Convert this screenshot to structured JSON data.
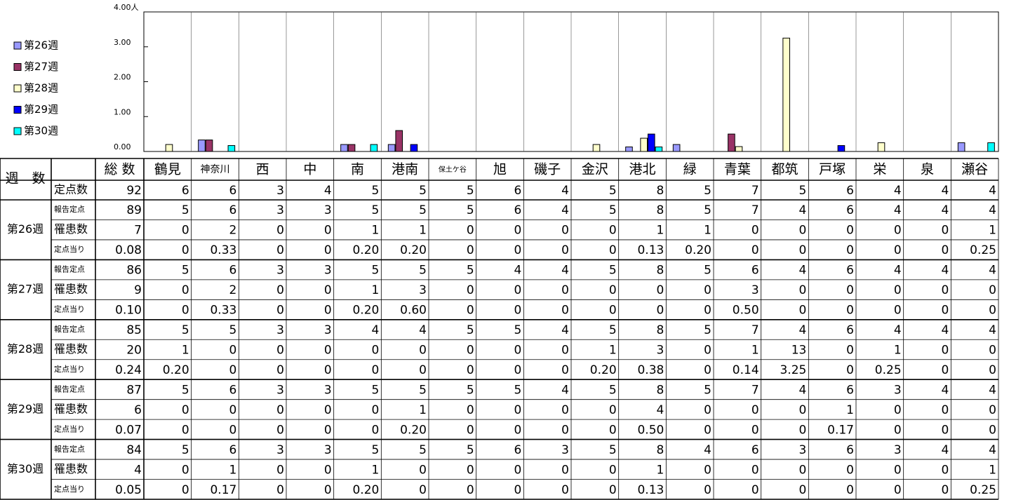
{
  "chart_data": {
    "type": "bar",
    "categories": [
      "鶴見",
      "神奈川",
      "西",
      "中",
      "南",
      "港南",
      "保土ケ谷",
      "旭",
      "磯子",
      "金沢",
      "港北",
      "緑",
      "青葉",
      "都筑",
      "戸塚",
      "栄",
      "泉",
      "瀬谷"
    ],
    "series": [
      {
        "name": "第26週",
        "color": "#9999ff",
        "values": [
          0,
          0.33,
          0,
          0,
          0.2,
          0.2,
          0,
          0,
          0,
          0,
          0.13,
          0.2,
          0,
          0,
          0,
          0,
          0,
          0.25
        ]
      },
      {
        "name": "第27週",
        "color": "#993366",
        "values": [
          0,
          0.33,
          0,
          0,
          0.2,
          0.6,
          0,
          0,
          0,
          0,
          0,
          0,
          0.5,
          0,
          0,
          0,
          0,
          0
        ]
      },
      {
        "name": "第28週",
        "color": "#ffffcc",
        "values": [
          0.2,
          0,
          0,
          0,
          0,
          0,
          0,
          0,
          0,
          0.2,
          0.38,
          0,
          0.14,
          3.25,
          0,
          0.25,
          0,
          0
        ]
      },
      {
        "name": "第29週",
        "color": "#0000ff",
        "values": [
          0,
          0,
          0,
          0,
          0,
          0.2,
          0,
          0,
          0,
          0,
          0.5,
          0,
          0,
          0,
          0.17,
          0,
          0,
          0
        ]
      },
      {
        "name": "第30週",
        "color": "#00ffff",
        "values": [
          0,
          0.17,
          0,
          0,
          0.2,
          0,
          0,
          0,
          0,
          0,
          0.13,
          0,
          0,
          0,
          0,
          0,
          0,
          0.25
        ]
      }
    ],
    "ylim": [
      0,
      4
    ],
    "yticks": [
      {
        "value": 0,
        "label": "0.00"
      },
      {
        "value": 1,
        "label": "1.00"
      },
      {
        "value": 2,
        "label": "2.00"
      },
      {
        "value": 3,
        "label": "3.00"
      },
      {
        "value": 4,
        "label": "4.00人"
      }
    ],
    "legend": "left"
  },
  "table": {
    "corner": "週　数",
    "header": [
      "総 数",
      "鶴見",
      "神奈川",
      "西",
      "中",
      "南",
      "港南",
      "保土ケ谷",
      "旭",
      "磯子",
      "金沢",
      "港北",
      "緑",
      "青葉",
      "都筑",
      "戸塚",
      "栄",
      "泉",
      "瀬谷"
    ],
    "site_row": {
      "label": "定点数",
      "cells": [
        "92",
        "6",
        "6",
        "3",
        "4",
        "5",
        "5",
        "5",
        "6",
        "4",
        "5",
        "8",
        "5",
        "7",
        "5",
        "6",
        "4",
        "4",
        "4"
      ]
    },
    "groups": [
      {
        "label": "第26週",
        "rows": [
          {
            "label": "報告定点",
            "cells": [
              "89",
              "5",
              "6",
              "3",
              "3",
              "5",
              "5",
              "5",
              "6",
              "4",
              "5",
              "8",
              "5",
              "7",
              "4",
              "6",
              "4",
              "4",
              "4"
            ]
          },
          {
            "label": "罹患数",
            "cells": [
              "7",
              "0",
              "2",
              "0",
              "0",
              "1",
              "1",
              "0",
              "0",
              "0",
              "0",
              "1",
              "1",
              "0",
              "0",
              "0",
              "0",
              "0",
              "1"
            ]
          },
          {
            "label": "定点当り",
            "cells": [
              "0.08",
              "0",
              "0.33",
              "0",
              "0",
              "0.20",
              "0.20",
              "0",
              "0",
              "0",
              "0",
              "0.13",
              "0.20",
              "0",
              "0",
              "0",
              "0",
              "0",
              "0.25"
            ]
          }
        ]
      },
      {
        "label": "第27週",
        "rows": [
          {
            "label": "報告定点",
            "cells": [
              "86",
              "5",
              "6",
              "3",
              "3",
              "5",
              "5",
              "5",
              "4",
              "4",
              "5",
              "8",
              "5",
              "6",
              "4",
              "6",
              "4",
              "4",
              "4"
            ]
          },
          {
            "label": "罹患数",
            "cells": [
              "9",
              "0",
              "2",
              "0",
              "0",
              "1",
              "3",
              "0",
              "0",
              "0",
              "0",
              "0",
              "0",
              "3",
              "0",
              "0",
              "0",
              "0",
              "0"
            ]
          },
          {
            "label": "定点当り",
            "cells": [
              "0.10",
              "0",
              "0.33",
              "0",
              "0",
              "0.20",
              "0.60",
              "0",
              "0",
              "0",
              "0",
              "0",
              "0",
              "0.50",
              "0",
              "0",
              "0",
              "0",
              "0"
            ]
          }
        ]
      },
      {
        "label": "第28週",
        "rows": [
          {
            "label": "報告定点",
            "cells": [
              "85",
              "5",
              "5",
              "3",
              "3",
              "4",
              "4",
              "5",
              "5",
              "4",
              "5",
              "8",
              "5",
              "7",
              "4",
              "6",
              "4",
              "4",
              "4"
            ]
          },
          {
            "label": "罹患数",
            "cells": [
              "20",
              "1",
              "0",
              "0",
              "0",
              "0",
              "0",
              "0",
              "0",
              "0",
              "1",
              "3",
              "0",
              "1",
              "13",
              "0",
              "1",
              "0",
              "0"
            ]
          },
          {
            "label": "定点当り",
            "cells": [
              "0.24",
              "0.20",
              "0",
              "0",
              "0",
              "0",
              "0",
              "0",
              "0",
              "0",
              "0.20",
              "0.38",
              "0",
              "0.14",
              "3.25",
              "0",
              "0.25",
              "0",
              "0"
            ]
          }
        ]
      },
      {
        "label": "第29週",
        "rows": [
          {
            "label": "報告定点",
            "cells": [
              "87",
              "5",
              "6",
              "3",
              "3",
              "5",
              "5",
              "5",
              "5",
              "4",
              "5",
              "8",
              "5",
              "7",
              "4",
              "6",
              "3",
              "4",
              "4"
            ]
          },
          {
            "label": "罹患数",
            "cells": [
              "6",
              "0",
              "0",
              "0",
              "0",
              "0",
              "1",
              "0",
              "0",
              "0",
              "0",
              "4",
              "0",
              "0",
              "0",
              "1",
              "0",
              "0",
              "0"
            ]
          },
          {
            "label": "定点当り",
            "cells": [
              "0.07",
              "0",
              "0",
              "0",
              "0",
              "0",
              "0.20",
              "0",
              "0",
              "0",
              "0",
              "0.50",
              "0",
              "0",
              "0",
              "0.17",
              "0",
              "0",
              "0"
            ]
          }
        ]
      },
      {
        "label": "第30週",
        "rows": [
          {
            "label": "報告定点",
            "cells": [
              "84",
              "5",
              "6",
              "3",
              "3",
              "5",
              "5",
              "5",
              "6",
              "3",
              "5",
              "8",
              "4",
              "6",
              "3",
              "6",
              "3",
              "4",
              "4"
            ]
          },
          {
            "label": "罹患数",
            "cells": [
              "4",
              "0",
              "1",
              "0",
              "0",
              "1",
              "0",
              "0",
              "0",
              "0",
              "0",
              "1",
              "0",
              "0",
              "0",
              "0",
              "0",
              "0",
              "1"
            ]
          },
          {
            "label": "定点当り",
            "cells": [
              "0.05",
              "0",
              "0.17",
              "0",
              "0",
              "0.20",
              "0",
              "0",
              "0",
              "0",
              "0",
              "0.13",
              "0",
              "0",
              "0",
              "0",
              "0",
              "0",
              "0.25"
            ]
          }
        ]
      }
    ]
  }
}
